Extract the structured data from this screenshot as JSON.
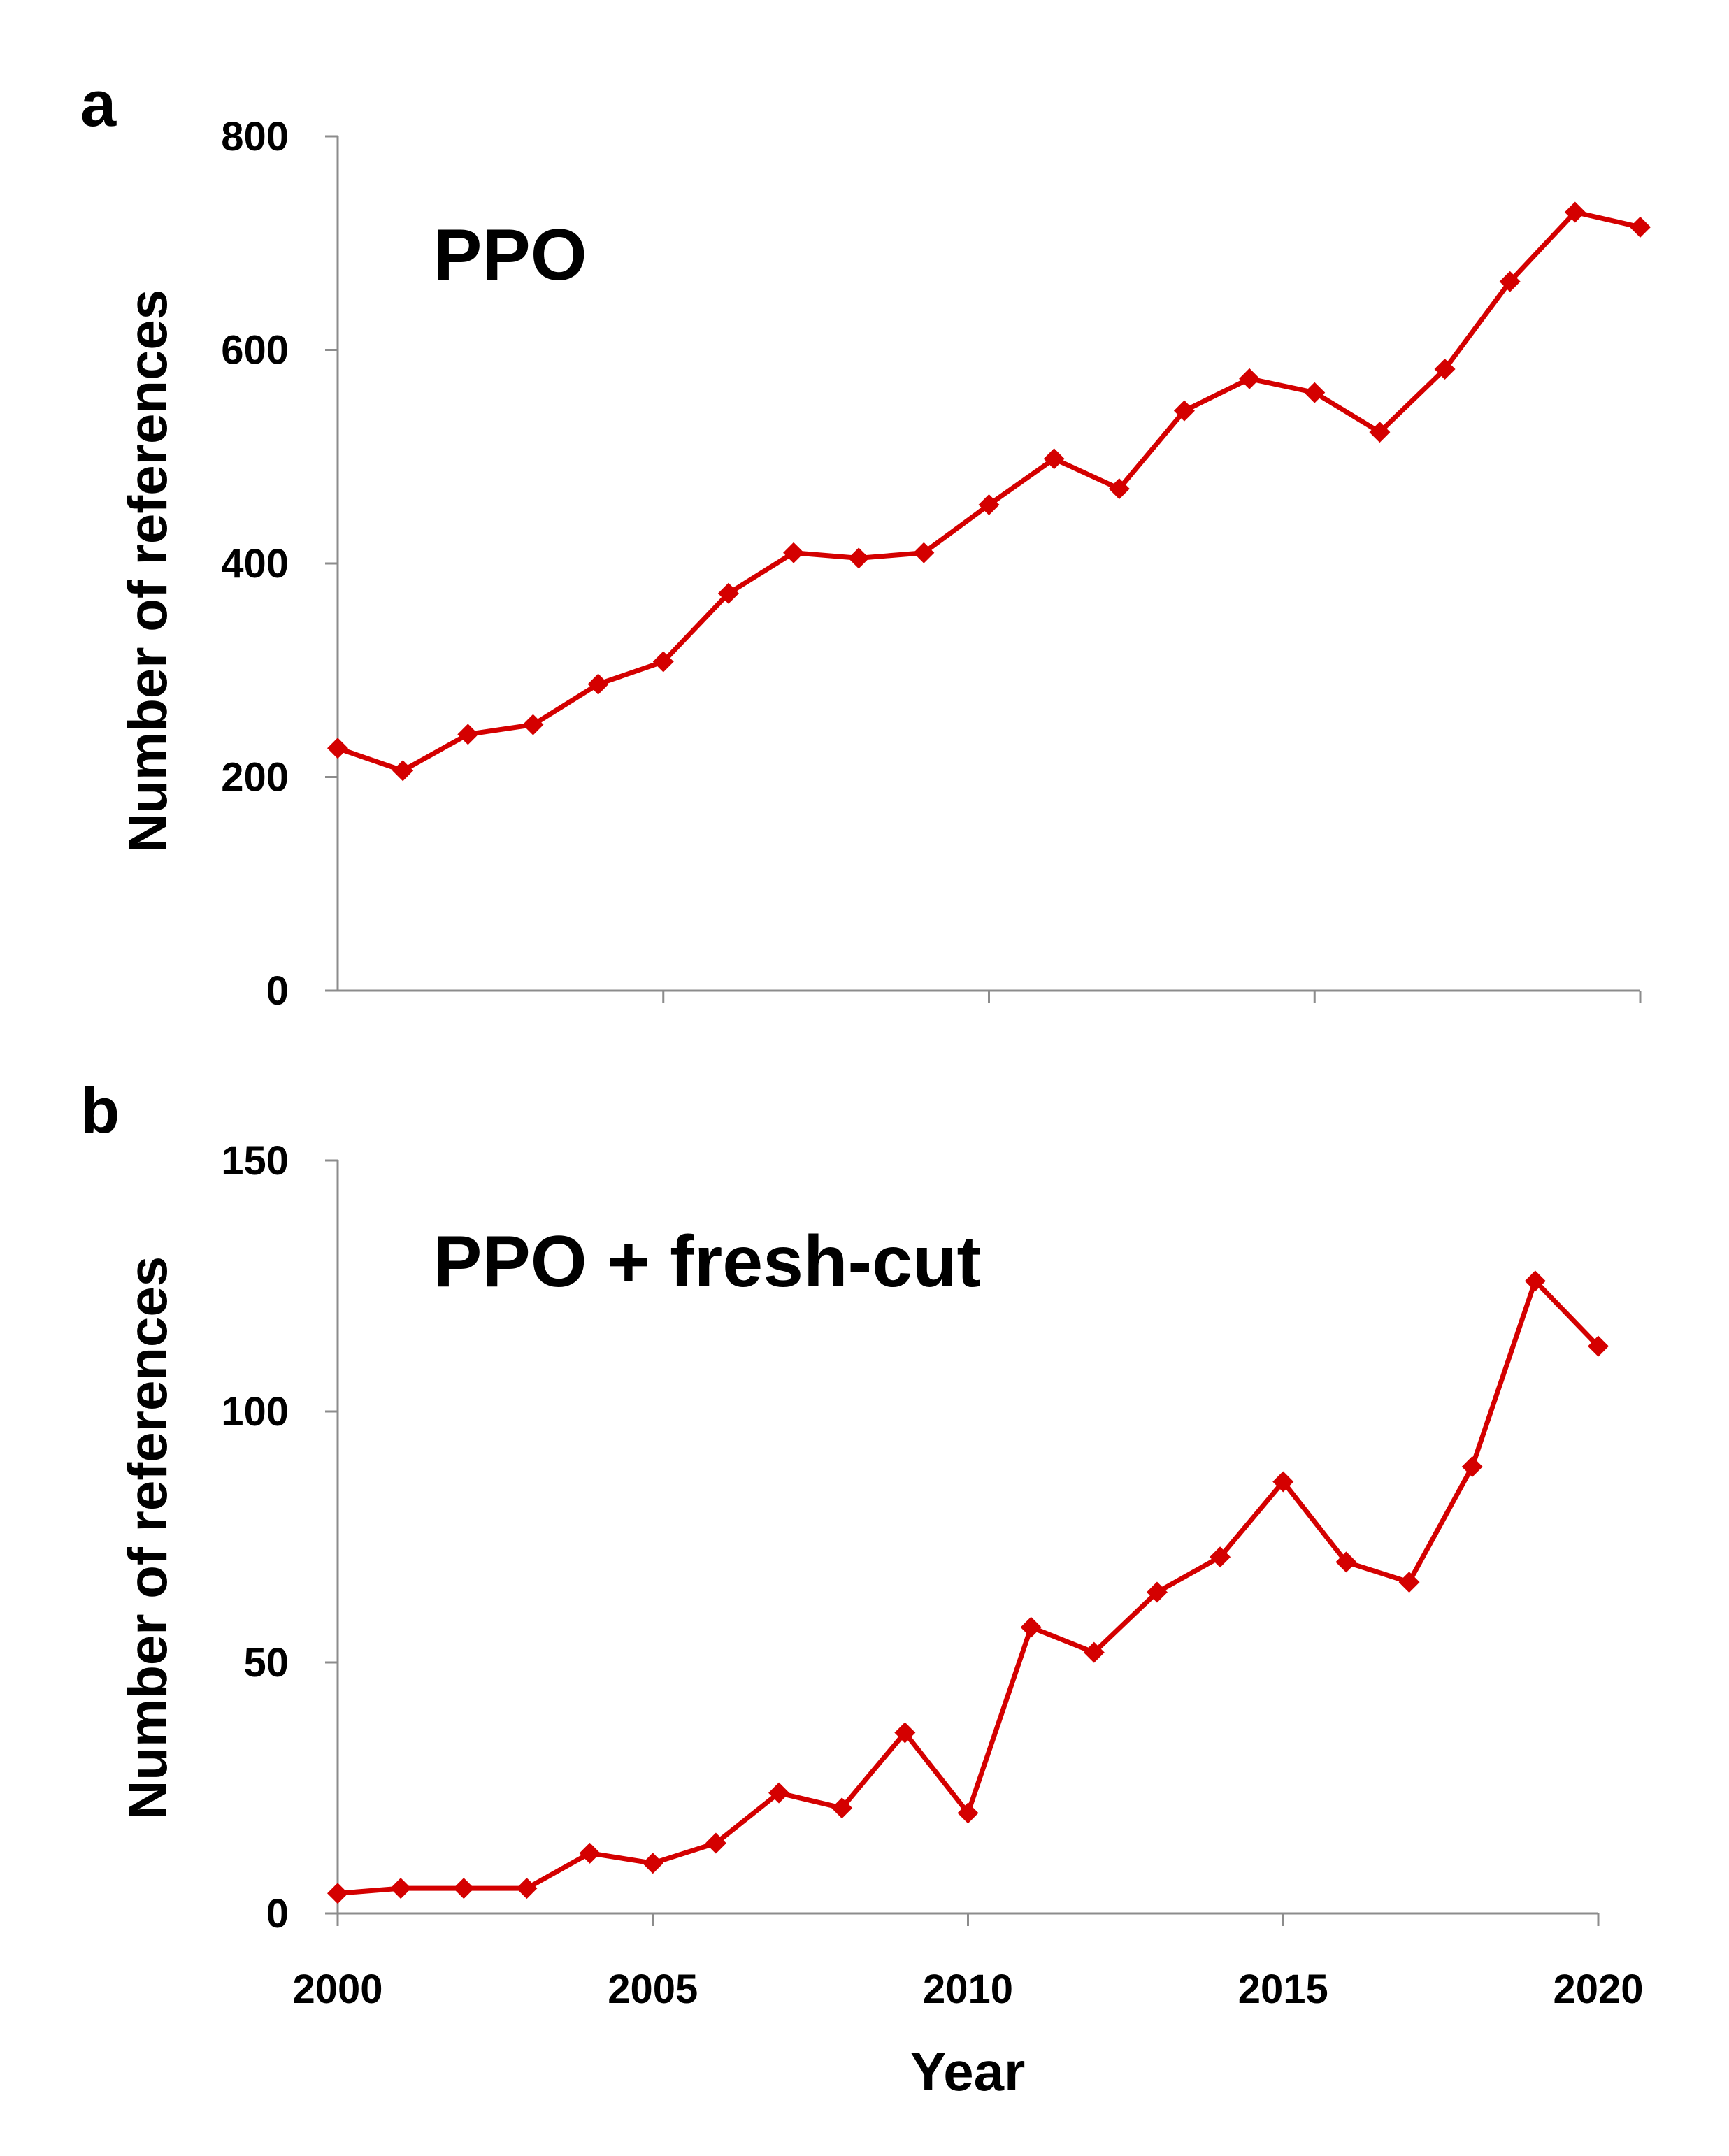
{
  "chart_data": [
    {
      "panel": "a",
      "type": "line",
      "title": "PPO",
      "xlabel": "",
      "ylabel": "Number of references",
      "ylim": [
        0,
        800
      ],
      "yticks": [
        0,
        200,
        400,
        600,
        800
      ],
      "xlim": [
        2000,
        2020
      ],
      "xticks": [
        2005,
        2010,
        2015,
        2020
      ],
      "show_x_tick_labels": false,
      "grid": false,
      "series": [
        {
          "name": "PPO",
          "color": "#d40000",
          "marker": "diamond",
          "x": [
            2000,
            2001,
            2002,
            2003,
            2004,
            2005,
            2006,
            2007,
            2008,
            2009,
            2010,
            2011,
            2012,
            2013,
            2014,
            2015,
            2016,
            2017,
            2018,
            2019,
            2020
          ],
          "values": [
            227,
            206,
            240,
            249,
            287,
            308,
            372,
            410,
            405,
            410,
            455,
            498,
            470,
            543,
            573,
            560,
            523,
            582,
            664,
            729,
            715
          ]
        }
      ]
    },
    {
      "panel": "b",
      "type": "line",
      "title": "PPO + fresh-cut",
      "xlabel": "Year",
      "ylabel": "Number of references",
      "ylim": [
        0,
        150
      ],
      "yticks": [
        0,
        50,
        100,
        150
      ],
      "xlim": [
        2000,
        2020
      ],
      "xticks": [
        2000,
        2005,
        2010,
        2015,
        2020
      ],
      "show_x_tick_labels": true,
      "grid": false,
      "series": [
        {
          "name": "PPO + fresh-cut",
          "color": "#d40000",
          "marker": "diamond",
          "x": [
            2000,
            2001,
            2002,
            2003,
            2004,
            2005,
            2006,
            2007,
            2008,
            2009,
            2010,
            2011,
            2012,
            2013,
            2014,
            2015,
            2016,
            2017,
            2018,
            2019,
            2020
          ],
          "values": [
            4,
            5,
            5,
            5,
            12,
            10,
            14,
            24,
            21,
            36,
            20,
            57,
            52,
            64,
            71,
            86,
            70,
            66,
            89,
            126,
            113
          ]
        }
      ]
    }
  ]
}
